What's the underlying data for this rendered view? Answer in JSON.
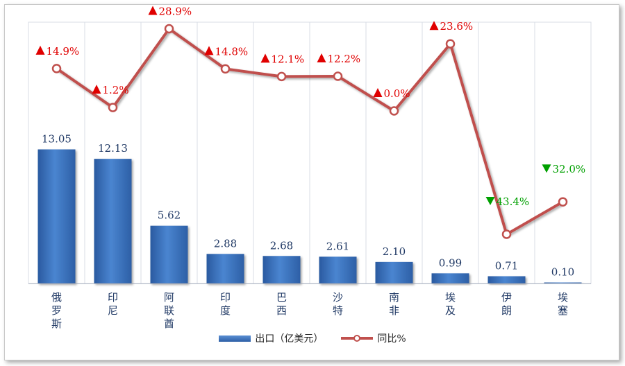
{
  "chart_data": {
    "type": "bar+line",
    "categories": [
      "俄罗斯",
      "印尼",
      "阿联酋",
      "印度",
      "巴西",
      "沙特",
      "南非",
      "埃及",
      "伊朗",
      "埃塞"
    ],
    "series": [
      {
        "name": "出口（亿美元）",
        "type": "bar",
        "color": "#3a6fbf",
        "values": [
          13.05,
          12.13,
          5.62,
          2.88,
          2.68,
          2.61,
          2.1,
          0.99,
          0.71,
          0.1
        ],
        "labels": [
          "13.05",
          "12.13",
          "5.62",
          "2.88",
          "2.68",
          "2.61",
          "2.10",
          "0.99",
          "0.71",
          "0.10"
        ]
      },
      {
        "name": "同比%",
        "type": "line",
        "color": "#c0504d",
        "values": [
          14.9,
          1.2,
          28.9,
          14.8,
          12.1,
          12.2,
          0.0,
          23.6,
          -43.4,
          -32.0
        ],
        "labels": [
          "14.9%",
          "1.2%",
          "28.9%",
          "14.8%",
          "12.1%",
          "12.2%",
          "0.0%",
          "23.6%",
          "43.4%",
          "32.0%"
        ],
        "up_color": "#e00000",
        "down_color": "#00a000"
      }
    ],
    "grid": "vertical",
    "legend": "bottom"
  }
}
